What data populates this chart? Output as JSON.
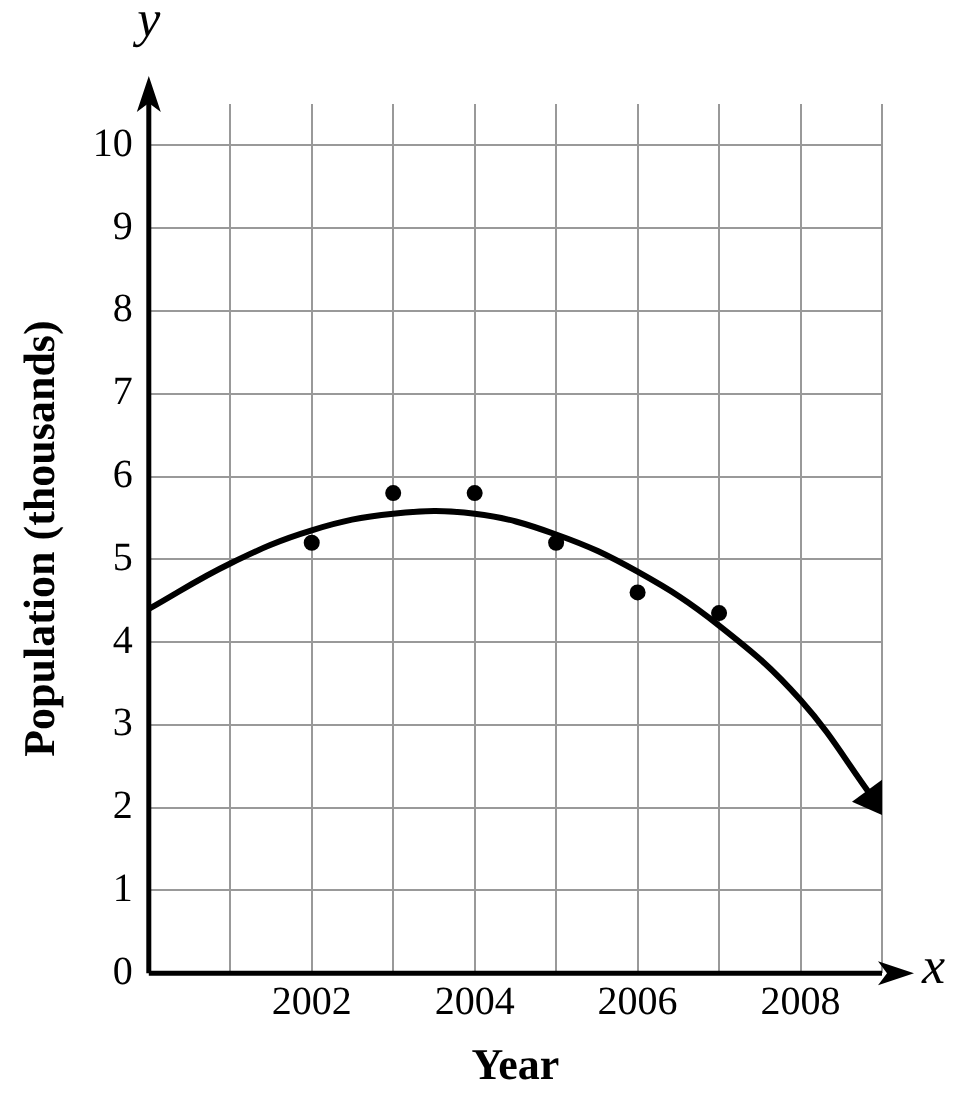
{
  "chart_data": {
    "type": "scatter",
    "xlabel": "Year",
    "ylabel": "Population (thousands)",
    "annotations": [
      "x",
      "y"
    ],
    "xlim": [
      2000,
      2009
    ],
    "ylim": [
      0,
      10.5
    ],
    "xticks": [
      {
        "value": 2000,
        "label": null
      },
      {
        "value": 2001,
        "label": null
      },
      2002,
      {
        "value": 2003,
        "label": null
      },
      2004,
      {
        "value": 2005,
        "label": null
      },
      2006,
      {
        "value": 2007,
        "label": null
      },
      2008,
      {
        "value": 2009,
        "label": null
      }
    ],
    "yticks": [
      0,
      1,
      2,
      3,
      4,
      5,
      6,
      7,
      8,
      9,
      10
    ],
    "grid": true,
    "marker": "circle",
    "series": [
      {
        "type": "scatter",
        "color": "#000000",
        "x": [
          2002,
          2003,
          2004,
          2005,
          2006,
          2007
        ],
        "values": [
          5.2,
          5.8,
          5.8,
          5.2,
          4.6,
          4.35
        ]
      },
      {
        "type": "line",
        "color": "#000000",
        "marker": "none",
        "x": [
          2000,
          2001,
          2002,
          2003,
          2004,
          2005,
          2006,
          2007,
          2008,
          2008.9
        ],
        "values": [
          4.4,
          4.95,
          5.35,
          5.55,
          5.55,
          5.3,
          4.85,
          4.2,
          3.3,
          2.1
        ]
      }
    ]
  }
}
